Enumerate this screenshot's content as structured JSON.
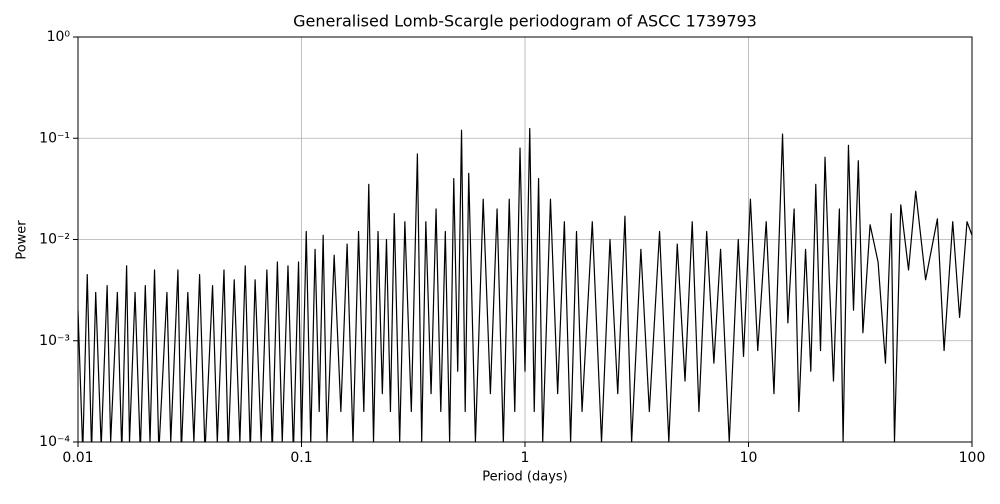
{
  "chart_data": {
    "type": "line",
    "title": "Generalised Lomb-Scargle periodogram of ASCC 1739793",
    "x_label": "Period (days)",
    "y_label": "Power",
    "x_log": true,
    "y_log": true,
    "grid": true,
    "xlim": [
      0.01,
      100
    ],
    "ylim": [
      0.0001,
      1
    ],
    "xticks": [
      0.01,
      0.1,
      1,
      10,
      100
    ],
    "yticks": [
      {
        "value": 0.0001,
        "label": "10⁻⁴"
      },
      {
        "value": 0.001,
        "label": "10⁻³"
      },
      {
        "value": 0.01,
        "label": "10⁻²"
      },
      {
        "value": 0.1,
        "label": "10⁻¹"
      },
      {
        "value": 1,
        "label": "10⁰"
      }
    ],
    "color": "#000000",
    "x": [
      0.01,
      0.0105,
      0.011,
      0.0115,
      0.012,
      0.0127,
      0.0135,
      0.014,
      0.015,
      0.0157,
      0.0165,
      0.017,
      0.018,
      0.019,
      0.02,
      0.021,
      0.022,
      0.023,
      0.025,
      0.026,
      0.028,
      0.029,
      0.031,
      0.033,
      0.035,
      0.037,
      0.04,
      0.042,
      0.045,
      0.047,
      0.05,
      0.053,
      0.056,
      0.059,
      0.062,
      0.066,
      0.07,
      0.074,
      0.078,
      0.082,
      0.087,
      0.092,
      0.097,
      0.1,
      0.105,
      0.11,
      0.115,
      0.12,
      0.125,
      0.13,
      0.14,
      0.15,
      0.16,
      0.17,
      0.18,
      0.19,
      0.2,
      0.21,
      0.22,
      0.23,
      0.24,
      0.25,
      0.26,
      0.275,
      0.29,
      0.31,
      0.33,
      0.345,
      0.36,
      0.38,
      0.4,
      0.42,
      0.44,
      0.46,
      0.48,
      0.5,
      0.52,
      0.54,
      0.56,
      0.6,
      0.65,
      0.7,
      0.75,
      0.8,
      0.85,
      0.9,
      0.95,
      1.0,
      1.05,
      1.1,
      1.15,
      1.2,
      1.3,
      1.4,
      1.5,
      1.6,
      1.7,
      1.8,
      2.0,
      2.2,
      2.4,
      2.6,
      2.8,
      3.0,
      3.3,
      3.6,
      4.0,
      4.4,
      4.8,
      5.2,
      5.6,
      6.0,
      6.5,
      7.0,
      7.5,
      8.2,
      9.0,
      9.5,
      10.2,
      11.0,
      12.0,
      13.0,
      14.2,
      15.0,
      16.0,
      16.8,
      18.0,
      19.0,
      20.0,
      21.0,
      22.0,
      23.0,
      24.0,
      25.5,
      26.5,
      28.0,
      29.5,
      31.0,
      32.5,
      35.0,
      38.0,
      41.0,
      43.5,
      45.0,
      48.0,
      52.0,
      56.0,
      62.0,
      70.0,
      75.0,
      82.0,
      88.0,
      95.0,
      100.0
    ],
    "values": [
      0.002,
      8e-05,
      0.0045,
      8e-05,
      0.003,
      9e-05,
      0.0035,
      0.0001,
      0.003,
      8e-05,
      0.0055,
      0.0001,
      0.003,
      8e-05,
      0.0035,
      0.0001,
      0.005,
      8e-05,
      0.003,
      0.0001,
      0.005,
      8e-05,
      0.003,
      0.0001,
      0.0045,
      8e-05,
      0.0035,
      0.0001,
      0.005,
      8e-05,
      0.004,
      0.0001,
      0.0055,
      8e-05,
      0.004,
      0.0001,
      0.005,
      8e-05,
      0.006,
      0.0001,
      0.0055,
      8e-05,
      0.006,
      0.0001,
      0.012,
      0.0001,
      0.008,
      0.0002,
      0.011,
      0.0001,
      0.007,
      0.0002,
      0.009,
      0.0001,
      0.012,
      0.0002,
      0.035,
      0.0001,
      0.012,
      0.0003,
      0.01,
      0.0002,
      0.018,
      0.0001,
      0.015,
      0.0002,
      0.07,
      0.0001,
      0.015,
      0.0003,
      0.02,
      0.0002,
      0.012,
      0.0001,
      0.04,
      0.0005,
      0.12,
      0.0002,
      0.045,
      0.0001,
      0.025,
      0.0003,
      0.02,
      0.0001,
      0.025,
      0.0002,
      0.08,
      0.0005,
      0.125,
      0.0002,
      0.04,
      0.0001,
      0.025,
      0.0003,
      0.015,
      0.0001,
      0.012,
      0.0002,
      0.015,
      0.0001,
      0.01,
      0.0003,
      0.017,
      0.0001,
      0.008,
      0.0002,
      0.012,
      0.0001,
      0.009,
      0.0004,
      0.015,
      0.0002,
      0.012,
      0.0006,
      0.008,
      0.0001,
      0.01,
      0.0007,
      0.025,
      0.0008,
      0.015,
      0.0003,
      0.11,
      0.0015,
      0.02,
      0.0002,
      0.008,
      0.0005,
      0.035,
      0.0008,
      0.065,
      0.004,
      0.0004,
      0.02,
      0.0001,
      0.085,
      0.002,
      0.06,
      0.0012,
      0.014,
      0.006,
      0.0006,
      0.018,
      0.0001,
      0.022,
      0.005,
      0.03,
      0.004,
      0.016,
      0.0008,
      0.015,
      0.0017,
      0.015,
      0.011
    ]
  }
}
